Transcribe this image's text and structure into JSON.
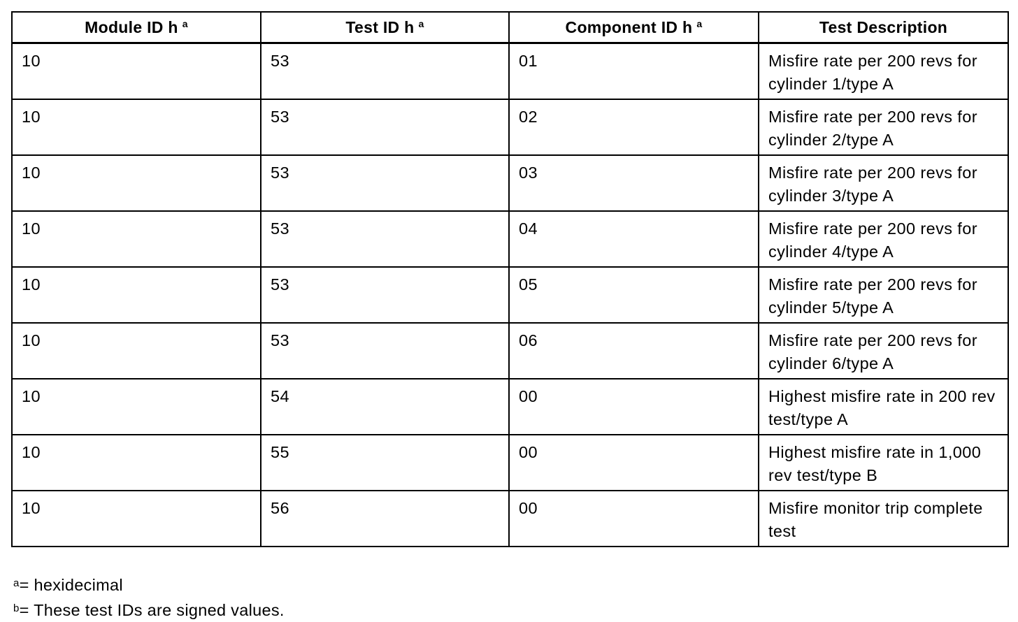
{
  "table": {
    "headers": [
      {
        "label": "Module ID h",
        "sup": "a"
      },
      {
        "label": "Test ID h",
        "sup": "a"
      },
      {
        "label": "Component ID h",
        "sup": "a"
      },
      {
        "label": "Test Description",
        "sup": ""
      }
    ],
    "rows": [
      [
        "10",
        "53",
        "01",
        "Misfire rate per 200 revs for cylinder 1/type A"
      ],
      [
        "10",
        "53",
        "02",
        "Misfire rate per 200 revs for cylinder 2/type A"
      ],
      [
        "10",
        "53",
        "03",
        "Misfire rate per 200 revs for cylinder 3/type A"
      ],
      [
        "10",
        "53",
        "04",
        "Misfire rate per 200 revs for cylinder 4/type A"
      ],
      [
        "10",
        "53",
        "05",
        "Misfire rate per 200 revs for cylinder 5/type A"
      ],
      [
        "10",
        "53",
        "06",
        "Misfire rate per 200 revs for cylinder 6/type A"
      ],
      [
        "10",
        "54",
        "00",
        "Highest misfire rate in 200 rev test/type A"
      ],
      [
        "10",
        "55",
        "00",
        "Highest misfire rate in 1,000 rev test/type B"
      ],
      [
        "10",
        "56",
        "00",
        "Misfire monitor trip complete test"
      ]
    ]
  },
  "footnotes": [
    {
      "mark": "a",
      "text": "= hexidecimal"
    },
    {
      "mark": "b",
      "text": "= These test IDs are signed values."
    }
  ]
}
